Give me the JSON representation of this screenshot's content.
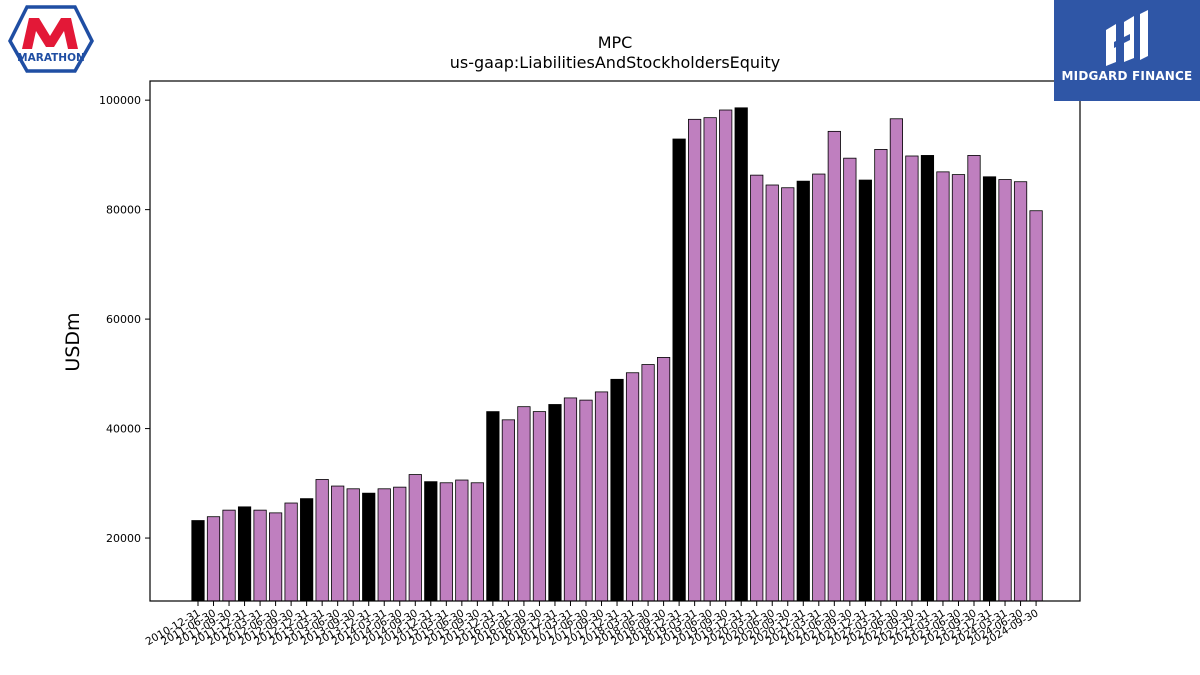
{
  "logos": {
    "left_text": "MARATHON",
    "right_text": "MIDGARD FINANCE"
  },
  "colors": {
    "annual_bar": "#000000",
    "quarter_bar": "#bf7fbf",
    "bar_edge": "#000000",
    "marathon_red": "#e31837",
    "marathon_blue": "#1f4ea3",
    "midgard_bg": "#2f56a6"
  },
  "chart_data": {
    "type": "bar",
    "title": "MPC",
    "subtitle": "us-gaap:LiabilitiesAndStockholdersEquity",
    "xlabel": "",
    "ylabel": "USDm",
    "ylim": [
      8500,
      103500
    ],
    "yticks": [
      20000,
      40000,
      60000,
      80000,
      100000
    ],
    "grid": false,
    "categories": [
      "2010-12-31",
      "2011-06-30",
      "2011-09-30",
      "2011-12-31",
      "2012-03-31",
      "2012-06-30",
      "2012-09-30",
      "2012-12-31",
      "2013-03-31",
      "2013-06-30",
      "2013-09-30",
      "2013-12-31",
      "2014-03-31",
      "2014-06-30",
      "2014-09-30",
      "2014-12-31",
      "2015-03-31",
      "2015-06-30",
      "2015-09-30",
      "2015-12-31",
      "2016-03-31",
      "2016-06-30",
      "2016-09-30",
      "2016-12-31",
      "2017-03-31",
      "2017-06-30",
      "2017-09-30",
      "2017-12-31",
      "2018-03-31",
      "2018-06-30",
      "2018-09-30",
      "2018-12-31",
      "2019-03-31",
      "2019-06-30",
      "2019-09-30",
      "2019-12-31",
      "2020-03-31",
      "2020-06-30",
      "2020-09-30",
      "2020-12-31",
      "2021-03-31",
      "2021-06-30",
      "2021-09-30",
      "2021-12-31",
      "2022-03-31",
      "2022-06-30",
      "2022-09-30",
      "2022-12-31",
      "2023-03-31",
      "2023-06-30",
      "2023-09-30",
      "2023-12-31",
      "2024-03-31",
      "2024-06-30",
      "2024-09-30"
    ],
    "values": [
      23200,
      23900,
      25100,
      25700,
      25100,
      24600,
      26400,
      27200,
      30700,
      29500,
      29000,
      28200,
      29000,
      29300,
      31600,
      30300,
      30100,
      30600,
      30100,
      43100,
      41600,
      44000,
      43100,
      44400,
      45600,
      45200,
      46700,
      49000,
      50200,
      51700,
      53000,
      92900,
      96500,
      96800,
      98200,
      98600,
      86300,
      84500,
      84000,
      85200,
      86500,
      94300,
      89400,
      85400,
      91000,
      96600,
      89800,
      89900,
      86900,
      86400,
      89900,
      86000,
      85500,
      85100,
      79800
    ],
    "annual": [
      true,
      false,
      false,
      true,
      false,
      false,
      false,
      true,
      false,
      false,
      false,
      true,
      false,
      false,
      false,
      true,
      false,
      false,
      false,
      true,
      false,
      false,
      false,
      true,
      false,
      false,
      false,
      true,
      false,
      false,
      false,
      true,
      false,
      false,
      false,
      true,
      false,
      false,
      false,
      true,
      false,
      false,
      false,
      true,
      false,
      false,
      false,
      true,
      false,
      false,
      false,
      true,
      false,
      false,
      false
    ]
  }
}
